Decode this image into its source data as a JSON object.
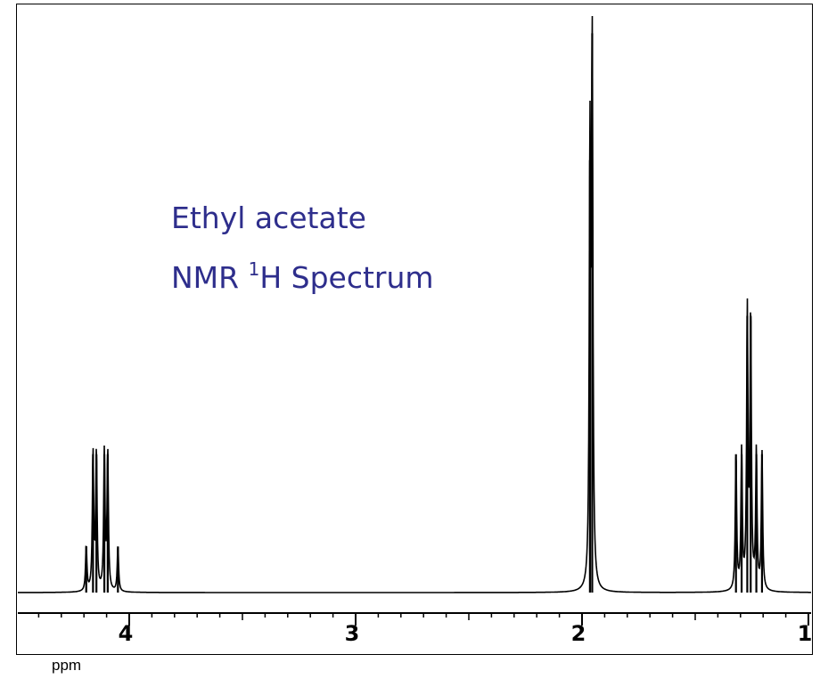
{
  "chart_data": {
    "type": "line",
    "title_line_1": "Ethyl acetate",
    "title_line_2_prefix": "NMR ",
    "title_line_2_sup": "1",
    "title_line_2_suffix": "H Spectrum",
    "xlabel": "ppm",
    "x_reversed": true,
    "xlim": [
      4.5,
      1.0
    ],
    "ylim": [
      0,
      1.0
    ],
    "xticks": [
      "4",
      "3",
      "2",
      "1"
    ],
    "peaks": [
      {
        "group": "quartet",
        "center": 4.12,
        "lines": [
          {
            "x": 4.19,
            "h": 0.08
          },
          {
            "x": 4.16,
            "h": 0.24
          },
          {
            "x": 4.145,
            "h": 0.24
          },
          {
            "x": 4.11,
            "h": 0.24
          },
          {
            "x": 4.095,
            "h": 0.24
          },
          {
            "x": 4.05,
            "h": 0.08
          }
        ]
      },
      {
        "group": "singlet",
        "center": 1.96,
        "lines": [
          {
            "x": 1.965,
            "h": 0.75
          },
          {
            "x": 1.955,
            "h": 0.97
          }
        ]
      },
      {
        "group": "triplet",
        "center": 1.26,
        "lines": [
          {
            "x": 1.32,
            "h": 0.24
          },
          {
            "x": 1.295,
            "h": 0.24
          },
          {
            "x": 1.27,
            "h": 0.48
          },
          {
            "x": 1.255,
            "h": 0.48
          },
          {
            "x": 1.23,
            "h": 0.24
          },
          {
            "x": 1.205,
            "h": 0.24
          }
        ]
      }
    ]
  }
}
